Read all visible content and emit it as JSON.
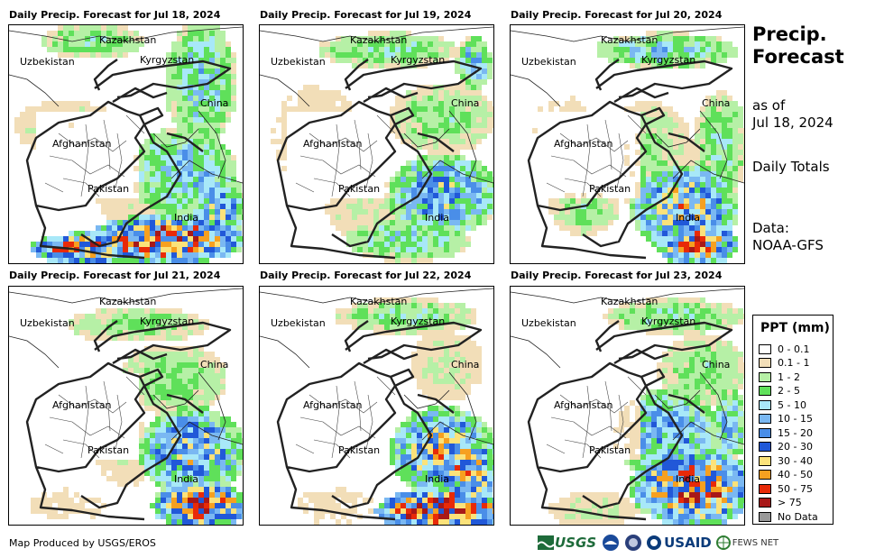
{
  "panels": [
    {
      "title": "Daily Precip. Forecast for Jul 18, 2024"
    },
    {
      "title": "Daily Precip. Forecast for Jul 19, 2024"
    },
    {
      "title": "Daily Precip. Forecast for Jul 20, 2024"
    },
    {
      "title": "Daily Precip. Forecast for Jul 21, 2024"
    },
    {
      "title": "Daily Precip. Forecast for Jul 22, 2024"
    },
    {
      "title": "Daily Precip. Forecast for Jul 23, 2024"
    }
  ],
  "map_labels": {
    "kazakhstan": "Kazakhstan",
    "uzbekistan": "Uzbekistan",
    "kyrgyzstan": "Kyrgyzstan",
    "china": "China",
    "afghanistan": "Afghanistan",
    "pakistan": "Pakistan",
    "india": "India"
  },
  "sidebar": {
    "title_line1": "Precip.",
    "title_line2": "Forecast",
    "asof_line1": "as of",
    "asof_line2": "Jul 18, 2024",
    "totals": "Daily Totals",
    "data_line1": "Data:",
    "data_line2": "NOAA-GFS"
  },
  "legend": {
    "title": "PPT (mm)",
    "items": [
      {
        "label": "0 - 0.1",
        "color": "#ffffff"
      },
      {
        "label": "0.1 - 1",
        "color": "#f2deb8"
      },
      {
        "label": "1 - 2",
        "color": "#b6f0a6"
      },
      {
        "label": "2 - 5",
        "color": "#5fe05a"
      },
      {
        "label": "5 - 10",
        "color": "#a8e8f8"
      },
      {
        "label": "10 - 15",
        "color": "#7ab8f2"
      },
      {
        "label": "15 - 20",
        "color": "#4a8ee8"
      },
      {
        "label": "20 - 30",
        "color": "#2158d8"
      },
      {
        "label": "30 - 40",
        "color": "#fbe27a"
      },
      {
        "label": "40 - 50",
        "color": "#f6a020"
      },
      {
        "label": "50 - 75",
        "color": "#e82a08"
      },
      {
        "label": "> 75",
        "color": "#a81818"
      },
      {
        "label": "No Data",
        "color": "#999999"
      }
    ]
  },
  "footer": {
    "credit": "Map Produced by USGS/EROS",
    "logo_usgs": "USGS",
    "logo_usaid": "USAID",
    "logo_fews": "FEWS NET"
  }
}
